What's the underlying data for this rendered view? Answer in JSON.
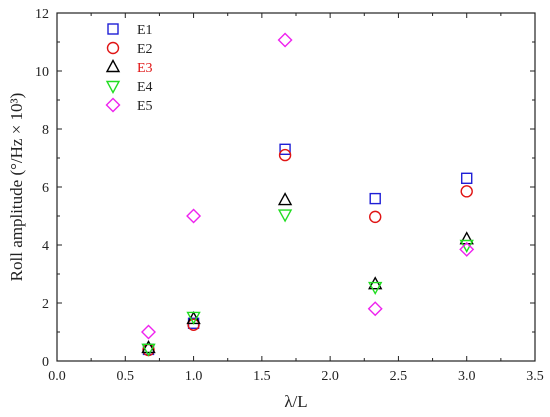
{
  "chart_data": {
    "type": "scatter",
    "xlabel": "λ/L",
    "ylabel": "Roll amplitude (°/Hz × 10³)",
    "xlim": [
      0.0,
      3.5
    ],
    "ylim": [
      0,
      12
    ],
    "xticks": [
      "0.0",
      "0.5",
      "1.0",
      "1.5",
      "2.0",
      "2.5",
      "3.0",
      "3.5"
    ],
    "xtick_values": [
      0.0,
      0.5,
      1.0,
      1.5,
      2.0,
      2.5,
      3.0,
      3.5
    ],
    "yticks": [
      "0",
      "2",
      "4",
      "6",
      "8",
      "10",
      "12"
    ],
    "ytick_values": [
      0,
      2,
      4,
      6,
      8,
      10,
      12
    ],
    "grid": false,
    "legend_position": "top-left",
    "series": [
      {
        "name": "E1",
        "marker": "square",
        "color": "#1f1fd6",
        "label_color": "#222222",
        "x": [
          0.67,
          1.0,
          1.67,
          2.33,
          3.0
        ],
        "y": [
          0.4,
          1.3,
          7.3,
          5.6,
          6.3
        ]
      },
      {
        "name": "E2",
        "marker": "circle",
        "color": "#e01414",
        "label_color": "#222222",
        "x": [
          0.67,
          1.0,
          1.67,
          2.33,
          3.0
        ],
        "y": [
          0.38,
          1.25,
          7.1,
          4.97,
          5.85
        ]
      },
      {
        "name": "E3",
        "marker": "triangle-up",
        "color": "#000000",
        "label_color": "#e01414",
        "x": [
          0.67,
          1.0,
          1.67,
          2.33,
          3.0
        ],
        "y": [
          0.45,
          1.45,
          5.55,
          2.65,
          4.2
        ]
      },
      {
        "name": "E4",
        "marker": "triangle-down",
        "color": "#22dd22",
        "label_color": "#222222",
        "x": [
          0.67,
          1.0,
          1.67,
          2.33,
          3.0
        ],
        "y": [
          0.42,
          1.52,
          5.05,
          2.55,
          4.0
        ]
      },
      {
        "name": "E5",
        "marker": "diamond",
        "color": "#ee22ee",
        "label_color": "#222222",
        "x": [
          0.67,
          1.0,
          1.67,
          2.33,
          3.0
        ],
        "y": [
          1.0,
          5.0,
          11.07,
          1.8,
          3.85
        ]
      }
    ]
  }
}
